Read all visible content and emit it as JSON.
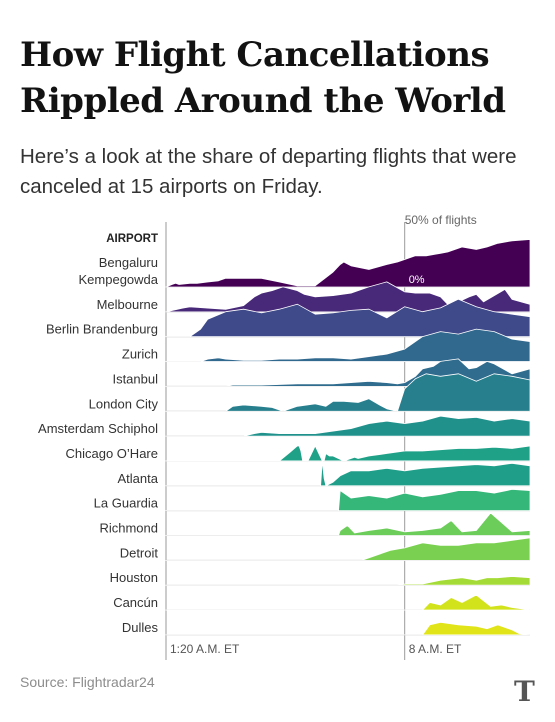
{
  "title": "How Flight Cancellations Rippled Around the World",
  "subtitle": "Here’s a look at the share of departing flights that were canceled at 15 airports on Friday.",
  "source": "Source: Flightradar24",
  "logo_text": "T",
  "chart_data": {
    "type": "area",
    "subtype": "ridgeline",
    "ylabel": "AIRPORT",
    "scale_label": "50% of flights",
    "zero_label": "0%",
    "x_ticks": [
      "1:20 A.M. ET",
      "8 A.M. ET"
    ],
    "x_tick_hours": [
      1.333,
      8.0
    ],
    "xlim": [
      1.333,
      11.5
    ],
    "ylim": [
      0,
      50
    ],
    "grid": false,
    "series": [
      {
        "name": "Bengaluru Kempegowda",
        "color": "#440154",
        "x": [
          1.33,
          1.5,
          1.6,
          1.7,
          2.0,
          2.2,
          2.5,
          2.8,
          3.0,
          3.5,
          4.0,
          4.5,
          5.0,
          5.5,
          6.0,
          6.2,
          6.3,
          6.5,
          7.0,
          7.5,
          7.8,
          8.0,
          8.3,
          8.6,
          9.0,
          9.2,
          9.6,
          10.0,
          10.3,
          10.6,
          11.0,
          11.5
        ],
        "y": [
          0,
          2,
          3,
          2,
          3,
          3,
          4,
          5,
          7,
          7,
          7,
          4,
          1,
          1,
          12,
          18,
          20,
          17,
          14,
          18,
          20,
          22,
          25,
          25,
          27,
          28,
          32,
          30,
          32,
          35,
          37,
          38
        ]
      },
      {
        "name": "Melbourne",
        "color": "#482879",
        "x": [
          1.33,
          1.8,
          2.0,
          2.5,
          3.0,
          3.5,
          3.8,
          4.0,
          4.3,
          4.6,
          5.0,
          5.2,
          5.5,
          6.0,
          6.5,
          7.0,
          7.5,
          8.0,
          8.3,
          8.7,
          9.0,
          9.2,
          9.5,
          9.8,
          10.0,
          10.2,
          10.5,
          10.8,
          11.0,
          11.5
        ],
        "y": [
          0,
          3,
          4,
          3,
          2,
          5,
          12,
          15,
          17,
          20,
          17,
          14,
          12,
          13,
          15,
          20,
          24,
          16,
          15,
          15,
          12,
          6,
          8,
          12,
          14,
          8,
          13,
          18,
          10,
          6
        ]
      },
      {
        "name": "Berlin Brandenburg",
        "color": "#3e4a89",
        "x": [
          1.33,
          2.0,
          2.3,
          2.5,
          3.0,
          3.5,
          4.0,
          4.5,
          5.0,
          5.5,
          6.0,
          6.5,
          7.0,
          7.5,
          8.0,
          8.5,
          9.0,
          9.5,
          10.0,
          10.5,
          11.0,
          11.5
        ],
        "y": [
          0,
          0,
          6,
          14,
          20,
          22,
          19,
          22,
          26,
          18,
          19,
          21,
          22,
          15,
          24,
          20,
          23,
          30,
          24,
          20,
          18,
          16
        ]
      },
      {
        "name": "Zurich",
        "color": "#31688e",
        "x": [
          1.33,
          2.3,
          2.5,
          2.8,
          3.0,
          3.5,
          4.0,
          4.5,
          5.0,
          5.5,
          6.0,
          6.5,
          7.0,
          7.5,
          8.0,
          8.5,
          9.0,
          9.5,
          10.0,
          10.5,
          11.0,
          11.5
        ],
        "y": [
          0,
          0,
          2,
          3,
          2,
          1,
          1,
          2,
          2,
          3,
          3,
          2,
          4,
          6,
          10,
          20,
          24,
          22,
          26,
          24,
          18,
          16
        ]
      },
      {
        "name": "Istanbul",
        "color": "#2f6c8e",
        "x": [
          1.33,
          3.0,
          3.2,
          4.0,
          5.0,
          6.0,
          6.5,
          7.0,
          7.5,
          7.8,
          8.0,
          8.3,
          8.5,
          8.8,
          9.0,
          9.5,
          9.8,
          10.0,
          10.3,
          10.5,
          11.0,
          11.5
        ],
        "y": [
          0,
          0,
          1,
          1,
          2,
          2,
          3,
          4,
          3,
          2,
          3,
          8,
          14,
          16,
          20,
          22,
          14,
          15,
          20,
          18,
          10,
          14
        ]
      },
      {
        "name": "London City",
        "color": "#277f8e",
        "x": [
          1.33,
          3.0,
          3.2,
          3.5,
          4.0,
          4.3,
          4.6,
          5.0,
          5.5,
          5.8,
          6.0,
          6.3,
          6.7,
          7.0,
          7.3,
          7.5,
          7.8,
          8.0,
          8.3,
          8.6,
          9.0,
          9.5,
          10.0,
          10.5,
          11.0,
          11.5
        ],
        "y": [
          0,
          0,
          4,
          5,
          4,
          3,
          0,
          4,
          6,
          4,
          8,
          8,
          7,
          10,
          5,
          2,
          0,
          18,
          26,
          30,
          28,
          30,
          24,
          30,
          28,
          25
        ]
      },
      {
        "name": "Amsterdam Schiphol",
        "color": "#21918c",
        "x": [
          1.33,
          3.5,
          3.8,
          4.0,
          4.5,
          5.0,
          5.5,
          6.0,
          6.5,
          7.0,
          7.5,
          8.0,
          8.5,
          9.0,
          9.5,
          10.0,
          10.5,
          11.0,
          11.5
        ],
        "y": [
          0,
          0,
          2,
          3,
          2,
          2,
          2,
          4,
          6,
          10,
          12,
          10,
          12,
          16,
          14,
          15,
          12,
          14,
          12
        ]
      },
      {
        "name": "Chicago O’Hare",
        "color": "#1fa188",
        "x": [
          1.33,
          4.5,
          4.8,
          5.0,
          5.05,
          5.1,
          5.15,
          5.3,
          5.5,
          5.7,
          5.75,
          5.8,
          5.9,
          6.0,
          6.3,
          6.6,
          6.7,
          7.0,
          7.5,
          8.0,
          8.5,
          9.0,
          9.5,
          10.0,
          10.5,
          11.0,
          11.5
        ],
        "y": [
          0,
          0,
          7,
          12,
          12,
          8,
          0,
          0,
          12,
          0,
          0,
          6,
          4,
          4,
          0,
          3,
          2,
          4,
          6,
          8,
          8,
          9,
          10,
          10,
          11,
          10,
          12
        ]
      },
      {
        "name": "Atlanta",
        "color": "#1f9e89",
        "x": [
          1.33,
          5.65,
          5.7,
          5.75,
          5.8,
          6.0,
          6.2,
          6.5,
          7.0,
          7.5,
          8.0,
          8.5,
          9.0,
          9.5,
          10.0,
          10.5,
          11.0,
          11.5
        ],
        "y": [
          0,
          0,
          20,
          6,
          0,
          3,
          8,
          12,
          12,
          14,
          12,
          14,
          15,
          16,
          17,
          16,
          18,
          16
        ]
      },
      {
        "name": "La Guardia",
        "color": "#35b779",
        "x": [
          1.33,
          6.15,
          6.2,
          6.5,
          7.0,
          7.5,
          8.0,
          8.5,
          9.0,
          9.5,
          10.0,
          10.5,
          11.0,
          11.5
        ],
        "y": [
          0,
          0,
          16,
          10,
          12,
          10,
          14,
          11,
          13,
          16,
          16,
          14,
          17,
          16
        ]
      },
      {
        "name": "Richmond",
        "color": "#6ccd5a",
        "x": [
          1.33,
          6.15,
          6.2,
          6.4,
          6.6,
          7.0,
          7.5,
          8.0,
          8.5,
          9.0,
          9.3,
          9.6,
          10.0,
          10.4,
          10.8,
          11.0,
          11.5
        ],
        "y": [
          0,
          0,
          4,
          8,
          2,
          4,
          6,
          3,
          4,
          6,
          12,
          3,
          4,
          18,
          8,
          3,
          4
        ]
      },
      {
        "name": "Detroit",
        "color": "#7ad151",
        "x": [
          1.33,
          6.8,
          7.0,
          7.3,
          7.6,
          8.0,
          8.5,
          9.0,
          9.5,
          10.0,
          10.5,
          11.0,
          11.5
        ],
        "y": [
          0,
          0,
          2,
          5,
          8,
          10,
          14,
          12,
          12,
          14,
          14,
          16,
          18
        ]
      },
      {
        "name": "Houston",
        "color": "#a5db36",
        "x": [
          1.33,
          7.8,
          8.0,
          8.5,
          9.0,
          9.3,
          9.6,
          10.0,
          10.3,
          10.6,
          11.0,
          11.5
        ],
        "y": [
          0,
          0,
          1,
          1,
          4,
          5,
          6,
          4,
          6,
          6,
          7,
          6
        ]
      },
      {
        "name": "Cancún",
        "color": "#d2e21b",
        "x": [
          1.33,
          8.5,
          8.7,
          9.0,
          9.3,
          9.6,
          10.0,
          10.4,
          10.7,
          11.0,
          11.5
        ],
        "y": [
          0,
          0,
          6,
          4,
          10,
          6,
          12,
          3,
          4,
          2,
          0
        ]
      },
      {
        "name": "Dulles",
        "color": "#e0e418",
        "x": [
          1.33,
          8.5,
          8.7,
          9.0,
          9.5,
          10.0,
          10.3,
          10.6,
          11.0,
          11.2,
          11.5
        ],
        "y": [
          0,
          0,
          8,
          10,
          8,
          7,
          5,
          8,
          4,
          1,
          0
        ]
      }
    ]
  }
}
